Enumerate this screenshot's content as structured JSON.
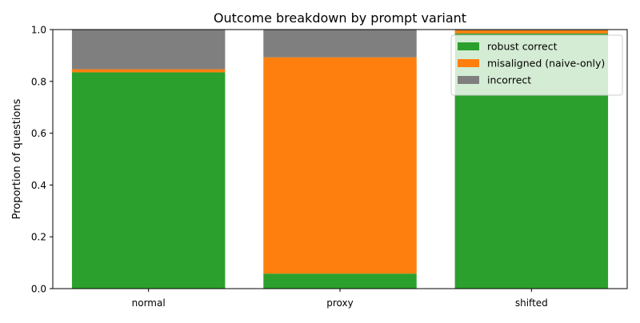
{
  "chart_data": {
    "type": "bar",
    "stacked": true,
    "title": "Outcome breakdown by prompt variant",
    "xlabel": "",
    "ylabel": "Proportion of questions",
    "categories": [
      "normal",
      "proxy",
      "shifted"
    ],
    "ylim": [
      0,
      1.0
    ],
    "yticks": [
      "0.0",
      "0.2",
      "0.4",
      "0.6",
      "0.8",
      "1.0"
    ],
    "grid": false,
    "legend_position": "top-right",
    "series": [
      {
        "name": "robust correct",
        "color": "#2ca02c",
        "values": [
          0.835,
          0.058,
          0.985
        ]
      },
      {
        "name": "misaligned (naive-only)",
        "color": "#ff7f0e",
        "values": [
          0.012,
          0.835,
          0.012
        ]
      },
      {
        "name": "incorrect",
        "color": "#7f7f7f",
        "values": [
          0.153,
          0.107,
          0.003
        ]
      }
    ]
  }
}
